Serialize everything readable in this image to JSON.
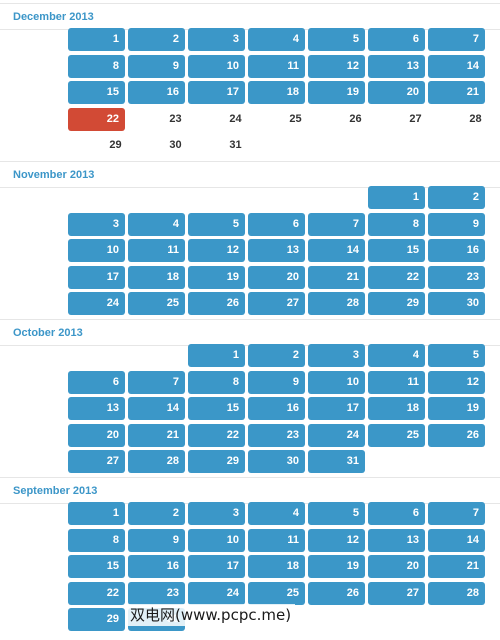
{
  "months": [
    {
      "title": "December 2013",
      "start_col": 0,
      "days": [
        {
          "n": "1",
          "style": "filled"
        },
        {
          "n": "2",
          "style": "filled"
        },
        {
          "n": "3",
          "style": "filled"
        },
        {
          "n": "4",
          "style": "filled"
        },
        {
          "n": "5",
          "style": "filled"
        },
        {
          "n": "6",
          "style": "filled"
        },
        {
          "n": "7",
          "style": "filled"
        },
        {
          "n": "8",
          "style": "filled"
        },
        {
          "n": "9",
          "style": "filled"
        },
        {
          "n": "10",
          "style": "filled"
        },
        {
          "n": "11",
          "style": "filled"
        },
        {
          "n": "12",
          "style": "filled"
        },
        {
          "n": "13",
          "style": "filled"
        },
        {
          "n": "14",
          "style": "filled"
        },
        {
          "n": "15",
          "style": "filled"
        },
        {
          "n": "16",
          "style": "filled"
        },
        {
          "n": "17",
          "style": "filled"
        },
        {
          "n": "18",
          "style": "filled"
        },
        {
          "n": "19",
          "style": "filled"
        },
        {
          "n": "20",
          "style": "filled"
        },
        {
          "n": "21",
          "style": "filled"
        },
        {
          "n": "22",
          "style": "today"
        },
        {
          "n": "23",
          "style": "plain"
        },
        {
          "n": "24",
          "style": "plain"
        },
        {
          "n": "25",
          "style": "plain"
        },
        {
          "n": "26",
          "style": "plain"
        },
        {
          "n": "27",
          "style": "plain"
        },
        {
          "n": "28",
          "style": "plain"
        },
        {
          "n": "29",
          "style": "plain"
        },
        {
          "n": "30",
          "style": "plain"
        },
        {
          "n": "31",
          "style": "plain"
        }
      ]
    },
    {
      "title": "November 2013",
      "start_col": 5,
      "days": [
        {
          "n": "1",
          "style": "filled"
        },
        {
          "n": "2",
          "style": "filled"
        },
        {
          "n": "3",
          "style": "filled"
        },
        {
          "n": "4",
          "style": "filled"
        },
        {
          "n": "5",
          "style": "filled"
        },
        {
          "n": "6",
          "style": "filled"
        },
        {
          "n": "7",
          "style": "filled"
        },
        {
          "n": "8",
          "style": "filled"
        },
        {
          "n": "9",
          "style": "filled"
        },
        {
          "n": "10",
          "style": "filled"
        },
        {
          "n": "11",
          "style": "filled"
        },
        {
          "n": "12",
          "style": "filled"
        },
        {
          "n": "13",
          "style": "filled"
        },
        {
          "n": "14",
          "style": "filled"
        },
        {
          "n": "15",
          "style": "filled"
        },
        {
          "n": "16",
          "style": "filled"
        },
        {
          "n": "17",
          "style": "filled"
        },
        {
          "n": "18",
          "style": "filled"
        },
        {
          "n": "19",
          "style": "filled"
        },
        {
          "n": "20",
          "style": "filled"
        },
        {
          "n": "21",
          "style": "filled"
        },
        {
          "n": "22",
          "style": "filled"
        },
        {
          "n": "23",
          "style": "filled"
        },
        {
          "n": "24",
          "style": "filled"
        },
        {
          "n": "25",
          "style": "filled"
        },
        {
          "n": "26",
          "style": "filled"
        },
        {
          "n": "27",
          "style": "filled"
        },
        {
          "n": "28",
          "style": "filled"
        },
        {
          "n": "29",
          "style": "filled"
        },
        {
          "n": "30",
          "style": "filled"
        }
      ]
    },
    {
      "title": "October 2013",
      "start_col": 2,
      "days": [
        {
          "n": "1",
          "style": "filled"
        },
        {
          "n": "2",
          "style": "filled"
        },
        {
          "n": "3",
          "style": "filled"
        },
        {
          "n": "4",
          "style": "filled"
        },
        {
          "n": "5",
          "style": "filled"
        },
        {
          "n": "6",
          "style": "filled"
        },
        {
          "n": "7",
          "style": "filled"
        },
        {
          "n": "8",
          "style": "filled"
        },
        {
          "n": "9",
          "style": "filled"
        },
        {
          "n": "10",
          "style": "filled"
        },
        {
          "n": "11",
          "style": "filled"
        },
        {
          "n": "12",
          "style": "filled"
        },
        {
          "n": "13",
          "style": "filled"
        },
        {
          "n": "14",
          "style": "filled"
        },
        {
          "n": "15",
          "style": "filled"
        },
        {
          "n": "16",
          "style": "filled"
        },
        {
          "n": "17",
          "style": "filled"
        },
        {
          "n": "18",
          "style": "filled"
        },
        {
          "n": "19",
          "style": "filled"
        },
        {
          "n": "20",
          "style": "filled"
        },
        {
          "n": "21",
          "style": "filled"
        },
        {
          "n": "22",
          "style": "filled"
        },
        {
          "n": "23",
          "style": "filled"
        },
        {
          "n": "24",
          "style": "filled"
        },
        {
          "n": "25",
          "style": "filled"
        },
        {
          "n": "26",
          "style": "filled"
        },
        {
          "n": "27",
          "style": "filled"
        },
        {
          "n": "28",
          "style": "filled"
        },
        {
          "n": "29",
          "style": "filled"
        },
        {
          "n": "30",
          "style": "filled"
        },
        {
          "n": "31",
          "style": "filled"
        }
      ]
    },
    {
      "title": "September 2013",
      "start_col": 0,
      "days": [
        {
          "n": "1",
          "style": "filled"
        },
        {
          "n": "2",
          "style": "filled"
        },
        {
          "n": "3",
          "style": "filled"
        },
        {
          "n": "4",
          "style": "filled"
        },
        {
          "n": "5",
          "style": "filled"
        },
        {
          "n": "6",
          "style": "filled"
        },
        {
          "n": "7",
          "style": "filled"
        },
        {
          "n": "8",
          "style": "filled"
        },
        {
          "n": "9",
          "style": "filled"
        },
        {
          "n": "10",
          "style": "filled"
        },
        {
          "n": "11",
          "style": "filled"
        },
        {
          "n": "12",
          "style": "filled"
        },
        {
          "n": "13",
          "style": "filled"
        },
        {
          "n": "14",
          "style": "filled"
        },
        {
          "n": "15",
          "style": "filled"
        },
        {
          "n": "16",
          "style": "filled"
        },
        {
          "n": "17",
          "style": "filled"
        },
        {
          "n": "18",
          "style": "filled"
        },
        {
          "n": "19",
          "style": "filled"
        },
        {
          "n": "20",
          "style": "filled"
        },
        {
          "n": "21",
          "style": "filled"
        },
        {
          "n": "22",
          "style": "filled"
        },
        {
          "n": "23",
          "style": "filled"
        },
        {
          "n": "24",
          "style": "filled"
        },
        {
          "n": "25",
          "style": "filled"
        },
        {
          "n": "26",
          "style": "filled"
        },
        {
          "n": "27",
          "style": "filled"
        },
        {
          "n": "28",
          "style": "filled"
        },
        {
          "n": "29",
          "style": "filled"
        },
        {
          "n": "30",
          "style": "filled"
        }
      ]
    }
  ],
  "watermark": "双电网(www.pcpc.me)",
  "colors": {
    "accent": "#3b97c8",
    "today": "#d24a35",
    "title": "#3c96c8"
  }
}
